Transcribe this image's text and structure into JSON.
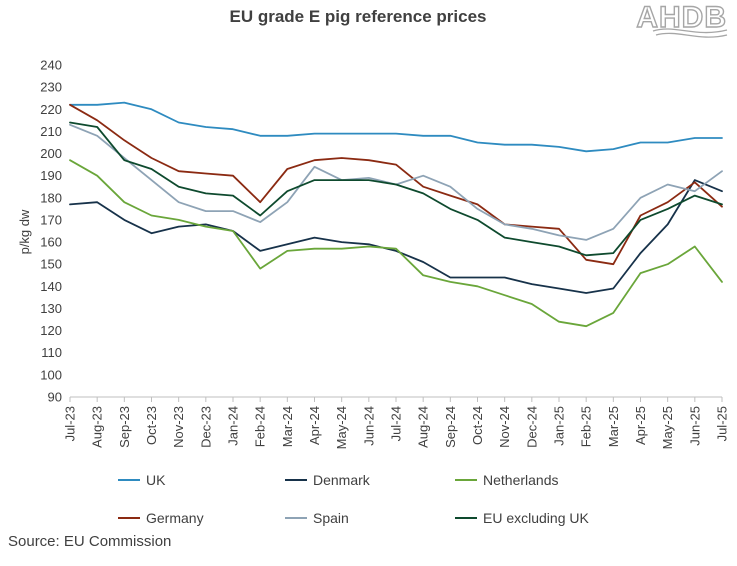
{
  "logo": {
    "text": "AHDB"
  },
  "source": "Source: EU Commission",
  "chart_data": {
    "type": "line",
    "title": "EU grade E pig reference prices",
    "xlabel": "",
    "ylabel": "p/kg dw",
    "ylim": [
      90,
      240
    ],
    "yticks": [
      90,
      100,
      110,
      120,
      130,
      140,
      150,
      160,
      170,
      180,
      190,
      200,
      210,
      220,
      230,
      240
    ],
    "grid": false,
    "legend_position": "bottom",
    "categories": [
      "Jul-23",
      "Aug-23",
      "Sep-23",
      "Oct-23",
      "Nov-23",
      "Dec-23",
      "Jan-24",
      "Feb-24",
      "Mar-24",
      "Apr-24",
      "May-24",
      "Jun-24",
      "Jul-24",
      "Aug-24",
      "Sep-24",
      "Oct-24",
      "Nov-24",
      "Dec-24",
      "Jan-25",
      "Feb-25",
      "Mar-25",
      "Apr-25",
      "May-25",
      "Jun-25",
      "Jul-25"
    ],
    "series": [
      {
        "name": "UK",
        "color": "#2e8bc0",
        "values": [
          222,
          222,
          223,
          220,
          214,
          212,
          211,
          208,
          208,
          209,
          209,
          209,
          209,
          208,
          208,
          205,
          204,
          204,
          203,
          201,
          202,
          205,
          205,
          207,
          207
        ]
      },
      {
        "name": "Denmark",
        "color": "#17324a",
        "values": [
          177,
          178,
          170,
          164,
          167,
          168,
          165,
          156,
          159,
          162,
          160,
          159,
          156,
          151,
          144,
          144,
          144,
          141,
          139,
          137,
          139,
          155,
          168,
          188,
          183
        ]
      },
      {
        "name": "Netherlands",
        "color": "#6aa63a",
        "values": [
          197,
          190,
          178,
          172,
          170,
          167,
          165,
          148,
          156,
          157,
          157,
          158,
          157,
          145,
          142,
          140,
          136,
          132,
          124,
          122,
          128,
          146,
          150,
          158,
          142
        ]
      },
      {
        "name": "Germany",
        "color": "#8b2a12",
        "values": [
          222,
          215,
          206,
          198,
          192,
          191,
          190,
          178,
          193,
          197,
          198,
          197,
          195,
          185,
          181,
          177,
          168,
          167,
          166,
          152,
          150,
          172,
          178,
          187,
          176
        ]
      },
      {
        "name": "Spain",
        "color": "#8ea3b5",
        "values": [
          213,
          208,
          198,
          188,
          178,
          174,
          174,
          169,
          178,
          194,
          188,
          189,
          186,
          190,
          185,
          175,
          168,
          166,
          163,
          161,
          166,
          180,
          186,
          183,
          192
        ]
      },
      {
        "name": "EU excluding UK",
        "color": "#0e4a2e",
        "values": [
          214,
          212,
          197,
          193,
          185,
          182,
          181,
          172,
          183,
          188,
          188,
          188,
          186,
          182,
          175,
          170,
          162,
          160,
          158,
          154,
          155,
          170,
          175,
          181,
          177
        ]
      }
    ]
  }
}
